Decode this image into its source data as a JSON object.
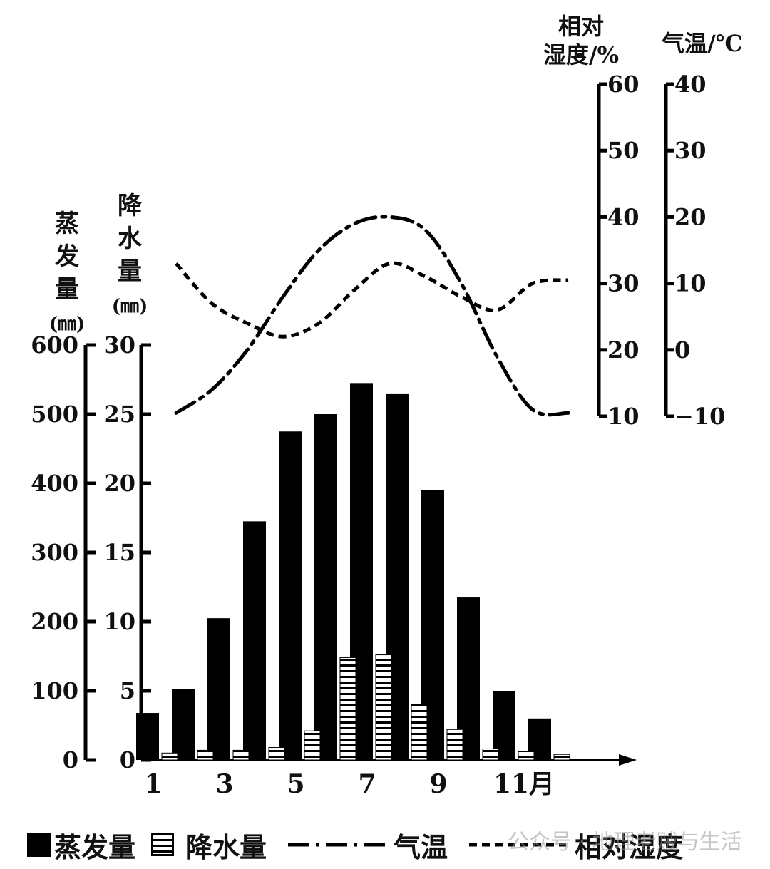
{
  "chart_data": {
    "type": "bar",
    "categories": [
      "1",
      "2",
      "3",
      "4",
      "5",
      "6",
      "7",
      "8",
      "9",
      "10",
      "11",
      "12"
    ],
    "x_tick_labels": [
      "1",
      "3",
      "5",
      "7",
      "9",
      "11月"
    ],
    "series": [
      {
        "name": "蒸发量",
        "kind": "bar",
        "axis": "evaporation",
        "values": [
          68,
          103,
          205,
          345,
          475,
          500,
          545,
          530,
          390,
          235,
          100,
          60
        ]
      },
      {
        "name": "降水量",
        "kind": "bar",
        "axis": "precipitation",
        "values": [
          0.5,
          0.7,
          0.7,
          0.9,
          2.1,
          7.4,
          7.6,
          4.0,
          2.2,
          0.8,
          0.6,
          0.4
        ]
      },
      {
        "name": "气温",
        "kind": "line",
        "axis": "temperature",
        "values": [
          -9.5,
          -6,
          0,
          8,
          15,
          19,
          20,
          18,
          10,
          -1,
          -9,
          -9.5
        ]
      },
      {
        "name": "相对湿度",
        "kind": "line",
        "axis": "humidity",
        "values": [
          33,
          27,
          24,
          22,
          24,
          29,
          33,
          31,
          28,
          26,
          30,
          30.5
        ]
      }
    ],
    "axes": {
      "evaporation": {
        "label": [
          "蒸",
          "发",
          "量",
          "(㎜)"
        ],
        "ticks": [
          0,
          100,
          200,
          300,
          400,
          500,
          600
        ],
        "ylim": [
          0,
          600
        ]
      },
      "precipitation": {
        "label": [
          "降",
          "水",
          "量",
          "(㎜)"
        ],
        "ticks": [
          0,
          5,
          10,
          15,
          20,
          25,
          30
        ],
        "ylim": [
          0,
          30
        ]
      },
      "humidity": {
        "label": [
          "相对",
          "湿度/%"
        ],
        "ticks": [
          10,
          20,
          30,
          40,
          50,
          60
        ],
        "ylim": [
          10,
          60
        ]
      },
      "temperature": {
        "label": [
          "气温/℃"
        ],
        "ticks": [
          -10,
          0,
          10,
          20,
          30,
          40
        ],
        "ylim": [
          -10,
          40
        ]
      }
    },
    "title": "",
    "xlabel": "",
    "grid": false,
    "legend_position": "bottom"
  },
  "legend": {
    "evaporation": "蒸发量",
    "precipitation": "降水量",
    "temperature": "气温",
    "humidity": "相对湿度"
  },
  "watermark": "公众号 · 地理老贼与生活",
  "colors": {
    "ink": "#000000",
    "background": "#ffffff"
  }
}
